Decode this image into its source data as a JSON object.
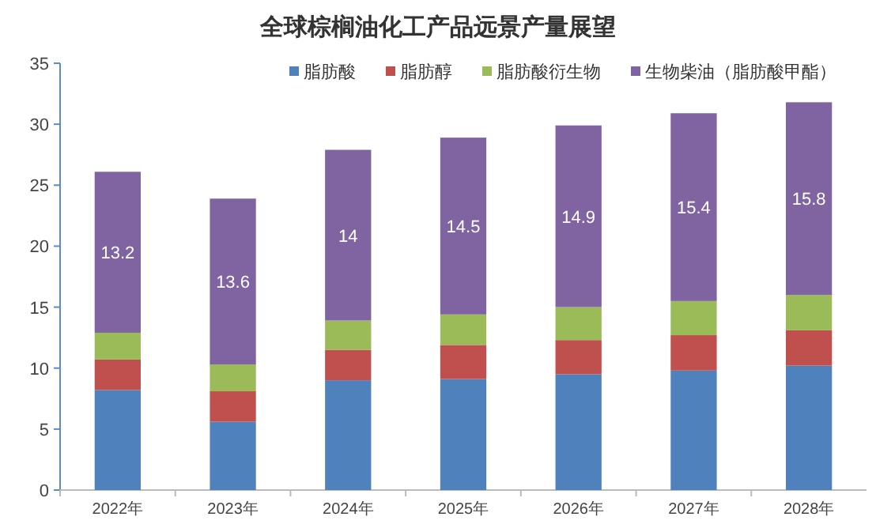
{
  "chart_data": {
    "type": "bar",
    "title": "全球棕榈油化工产品远景产量展望",
    "stacked": true,
    "categories": [
      "2022年",
      "2023年",
      "2024年",
      "2025年",
      "2026年",
      "2027年",
      "2028年"
    ],
    "ylim": [
      0,
      35
    ],
    "yticks": [
      0,
      5,
      10,
      15,
      20,
      25,
      30,
      35
    ],
    "grid": false,
    "legend": "top right",
    "series": [
      {
        "name": "脂肪酸",
        "color": "#4f81bd",
        "values": [
          8.2,
          5.6,
          9.0,
          9.1,
          9.5,
          9.8,
          10.2
        ]
      },
      {
        "name": "脂肪醇",
        "color": "#c0504d",
        "values": [
          2.5,
          2.5,
          2.5,
          2.8,
          2.8,
          2.9,
          2.9
        ]
      },
      {
        "name": "脂肪酸衍生物",
        "color": "#9bbb59",
        "values": [
          2.2,
          2.2,
          2.4,
          2.5,
          2.7,
          2.8,
          2.9
        ]
      },
      {
        "name": "生物柴油（脂肪酸甲酯）",
        "color": "#8064a2",
        "values": [
          13.2,
          13.6,
          14,
          14.5,
          14.9,
          15.4,
          15.8
        ],
        "value_labels": [
          "13.2",
          "13.6",
          "14",
          "14.5",
          "14.9",
          "15.4",
          "15.8"
        ]
      }
    ]
  }
}
